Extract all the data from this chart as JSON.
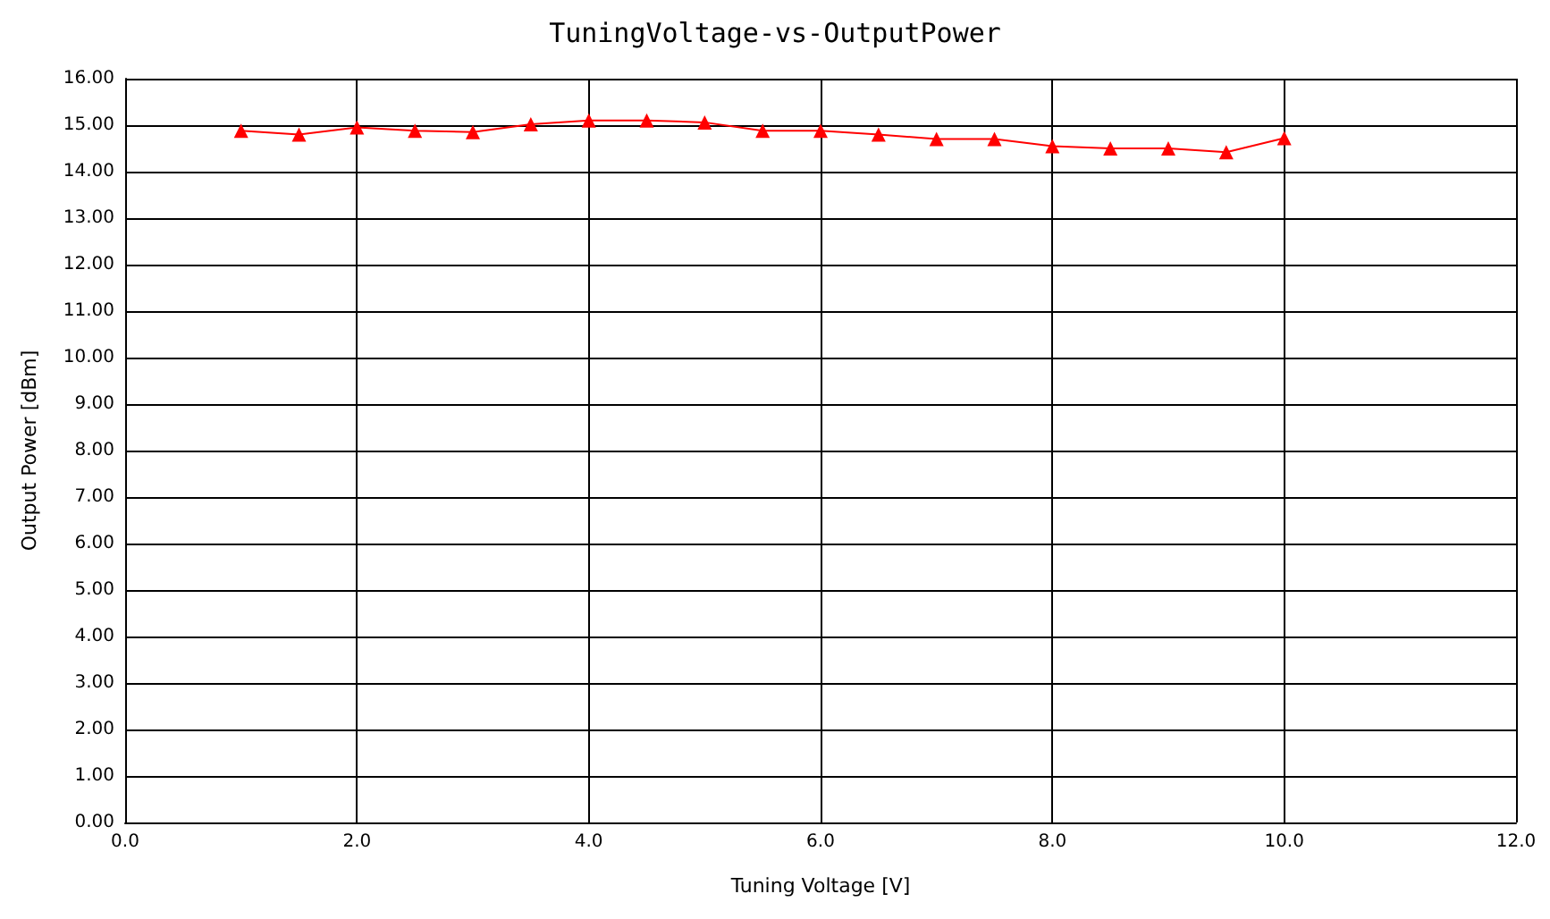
{
  "chart_data": {
    "type": "line",
    "title": "TuningVoltage-vs-OutputPower",
    "xlabel": "Tuning Voltage [V]",
    "ylabel": "Output Power [dBm]",
    "x": [
      1.0,
      1.5,
      2.0,
      2.5,
      3.0,
      3.5,
      4.0,
      4.5,
      5.0,
      5.5,
      6.0,
      6.5,
      7.0,
      7.5,
      8.0,
      8.5,
      9.0,
      9.5,
      10.0
    ],
    "series": [
      {
        "color": "#ff0000",
        "values": [
          14.88,
          14.8,
          14.95,
          14.88,
          14.85,
          15.02,
          15.1,
          15.1,
          15.06,
          14.88,
          14.88,
          14.8,
          14.7,
          14.7,
          14.55,
          14.5,
          14.5,
          14.42,
          14.72
        ]
      }
    ],
    "xlim": [
      0,
      12
    ],
    "xticks": [
      {
        "value": 0,
        "label": "0.0"
      },
      {
        "value": 2,
        "label": "2.0"
      },
      {
        "value": 4,
        "label": "4.0"
      },
      {
        "value": 6,
        "label": "6.0"
      },
      {
        "value": 8,
        "label": "8.0"
      },
      {
        "value": 10,
        "label": "10.0"
      },
      {
        "value": 12,
        "label": "12.0"
      }
    ],
    "ylim": [
      0,
      16
    ],
    "yticks": [
      {
        "value": 0,
        "label": "0.00"
      },
      {
        "value": 1,
        "label": "1.00"
      },
      {
        "value": 2,
        "label": "2.00"
      },
      {
        "value": 3,
        "label": "3.00"
      },
      {
        "value": 4,
        "label": "4.00"
      },
      {
        "value": 5,
        "label": "5.00"
      },
      {
        "value": 6,
        "label": "6.00"
      },
      {
        "value": 7,
        "label": "7.00"
      },
      {
        "value": 8,
        "label": "8.00"
      },
      {
        "value": 9,
        "label": "9.00"
      },
      {
        "value": 10,
        "label": "10.00"
      },
      {
        "value": 11,
        "label": "11.00"
      },
      {
        "value": 12,
        "label": "12.00"
      },
      {
        "value": 13,
        "label": "13.00"
      },
      {
        "value": 14,
        "label": "14.00"
      },
      {
        "value": 15,
        "label": "15.00"
      },
      {
        "value": 16,
        "label": "16.00"
      }
    ],
    "grid": true,
    "marker": "triangle",
    "line_style": "solid"
  }
}
